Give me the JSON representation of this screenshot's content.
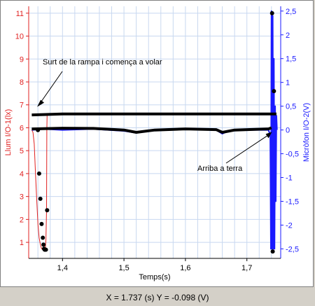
{
  "status": {
    "readout": "X = 1.737 (s)  Y = -0.098 (V)"
  },
  "chart_data": {
    "type": "line",
    "xlabel": "Temps(s)",
    "ylabel_left": "Llum I/O-1(lx)",
    "ylabel_right": "Micròfon I/O-2(V)",
    "xlim": [
      1.345,
      1.755
    ],
    "ylim_left": [
      0.3,
      11.3
    ],
    "ylim_right": [
      -2.7,
      2.6
    ],
    "x_ticks": [
      {
        "v": 1.4,
        "label": "1,4"
      },
      {
        "v": 1.5,
        "label": "1,5"
      },
      {
        "v": 1.6,
        "label": "1,6"
      },
      {
        "v": 1.7,
        "label": "1,7"
      }
    ],
    "y_left_ticks": [
      {
        "v": 1,
        "label": "1"
      },
      {
        "v": 2,
        "label": "2"
      },
      {
        "v": 3,
        "label": "3"
      },
      {
        "v": 4,
        "label": "4"
      },
      {
        "v": 5,
        "label": "5"
      },
      {
        "v": 6,
        "label": "6"
      },
      {
        "v": 7,
        "label": "7"
      },
      {
        "v": 8,
        "label": "8"
      },
      {
        "v": 9,
        "label": "9"
      },
      {
        "v": 10,
        "label": "10"
      },
      {
        "v": 11,
        "label": "11"
      }
    ],
    "y_right_ticks": [
      {
        "v": 2.5,
        "label": "2,5"
      },
      {
        "v": 2,
        "label": "2"
      },
      {
        "v": 1.5,
        "label": "1,5"
      },
      {
        "v": 1,
        "label": "1"
      },
      {
        "v": 0.5,
        "label": "0,5"
      },
      {
        "v": 0,
        "label": "0"
      },
      {
        "v": -0.5,
        "label": "-0,5"
      },
      {
        "v": -1,
        "label": "-1"
      },
      {
        "v": -1.5,
        "label": "-1,5"
      },
      {
        "v": -2,
        "label": "-2"
      },
      {
        "v": -2.5,
        "label": "-2,5"
      }
    ],
    "series": [
      {
        "axis": "left",
        "color": "#e02020",
        "points": [
          [
            1.35,
            5.9
          ],
          [
            1.352,
            5.8
          ],
          [
            1.354,
            5.3
          ],
          [
            1.356,
            4.0
          ],
          [
            1.358,
            2.9
          ],
          [
            1.36,
            1.8
          ],
          [
            1.362,
            1.2
          ],
          [
            1.364,
            0.9
          ],
          [
            1.366,
            0.72
          ],
          [
            1.369,
            0.68
          ],
          [
            1.372,
            0.68
          ],
          [
            1.373,
            1.1
          ],
          [
            1.374,
            2.4
          ],
          [
            1.3745,
            5.9
          ],
          [
            1.375,
            6.55
          ]
        ]
      },
      {
        "axis": "right",
        "color": "#1a1aff",
        "points": [
          [
            1.35,
            0.0
          ],
          [
            1.37,
            0.02
          ],
          [
            1.4,
            0.0
          ],
          [
            1.45,
            0.02
          ],
          [
            1.5,
            -0.02
          ],
          [
            1.52,
            -0.06
          ],
          [
            1.55,
            0.0
          ],
          [
            1.6,
            0.02
          ],
          [
            1.65,
            0.0
          ],
          [
            1.66,
            -0.08
          ],
          [
            1.67,
            -0.02
          ],
          [
            1.7,
            0.0
          ],
          [
            1.735,
            0.0
          ],
          [
            1.738,
            -0.1
          ],
          [
            1.739,
            -2.5
          ],
          [
            1.74,
            2.5
          ],
          [
            1.741,
            -2.5
          ],
          [
            1.742,
            2.4
          ],
          [
            1.743,
            -2.5
          ],
          [
            1.744,
            1.5
          ],
          [
            1.745,
            -2.5
          ],
          [
            1.746,
            0.5
          ],
          [
            1.747,
            -1.5
          ],
          [
            1.748,
            0.3
          ],
          [
            1.749,
            0.0
          ]
        ]
      },
      {
        "axis": "left",
        "color": "#000000",
        "points": [
          [
            1.35,
            6.56
          ],
          [
            1.4,
            6.6
          ],
          [
            1.5,
            6.6
          ],
          [
            1.6,
            6.6
          ],
          [
            1.7,
            6.6
          ],
          [
            1.748,
            6.6
          ]
        ]
      },
      {
        "axis": "left",
        "color": "#000000",
        "points": [
          [
            1.35,
            5.95
          ],
          [
            1.4,
            5.98
          ],
          [
            1.45,
            5.97
          ],
          [
            1.5,
            5.9
          ],
          [
            1.52,
            5.8
          ],
          [
            1.55,
            5.9
          ],
          [
            1.6,
            5.95
          ],
          [
            1.65,
            5.92
          ],
          [
            1.66,
            5.8
          ],
          [
            1.68,
            5.9
          ],
          [
            1.735,
            5.95
          ],
          [
            1.74,
            6.0
          ]
        ]
      }
    ],
    "markers_left": [
      [
        1.36,
        5.9
      ],
      [
        1.362,
        4.0
      ],
      [
        1.364,
        2.9
      ],
      [
        1.366,
        1.8
      ],
      [
        1.368,
        1.2
      ],
      [
        1.369,
        0.9
      ],
      [
        1.37,
        0.72
      ],
      [
        1.371,
        0.68
      ],
      [
        1.373,
        0.68
      ],
      [
        1.375,
        2.4
      ],
      [
        1.741,
        11.0
      ],
      [
        1.744,
        7.6
      ],
      [
        1.742,
        0.6
      ]
    ],
    "annotations": [
      {
        "text": "Surt de la rampa i comença a volar",
        "x": 1.361,
        "y": 6.85
      },
      {
        "text": "Arriba a terra",
        "x": 1.742,
        "y": 5.85
      }
    ]
  }
}
